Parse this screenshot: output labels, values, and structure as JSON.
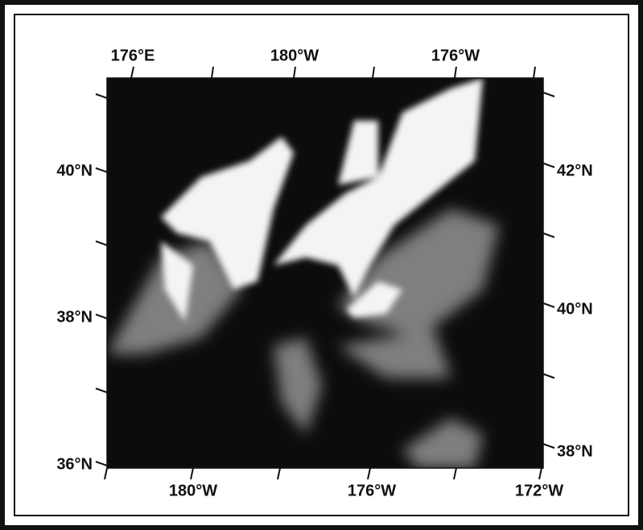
{
  "map": {
    "top_labels": [
      "176°E",
      "180°W",
      "176°W"
    ],
    "left_labels": [
      "40°N",
      "38°N",
      "36°N"
    ],
    "right_labels": [
      "42°N",
      "40°N",
      "38°N"
    ],
    "bottom_labels": [
      "180°W",
      "176°W",
      "172°W"
    ]
  }
}
